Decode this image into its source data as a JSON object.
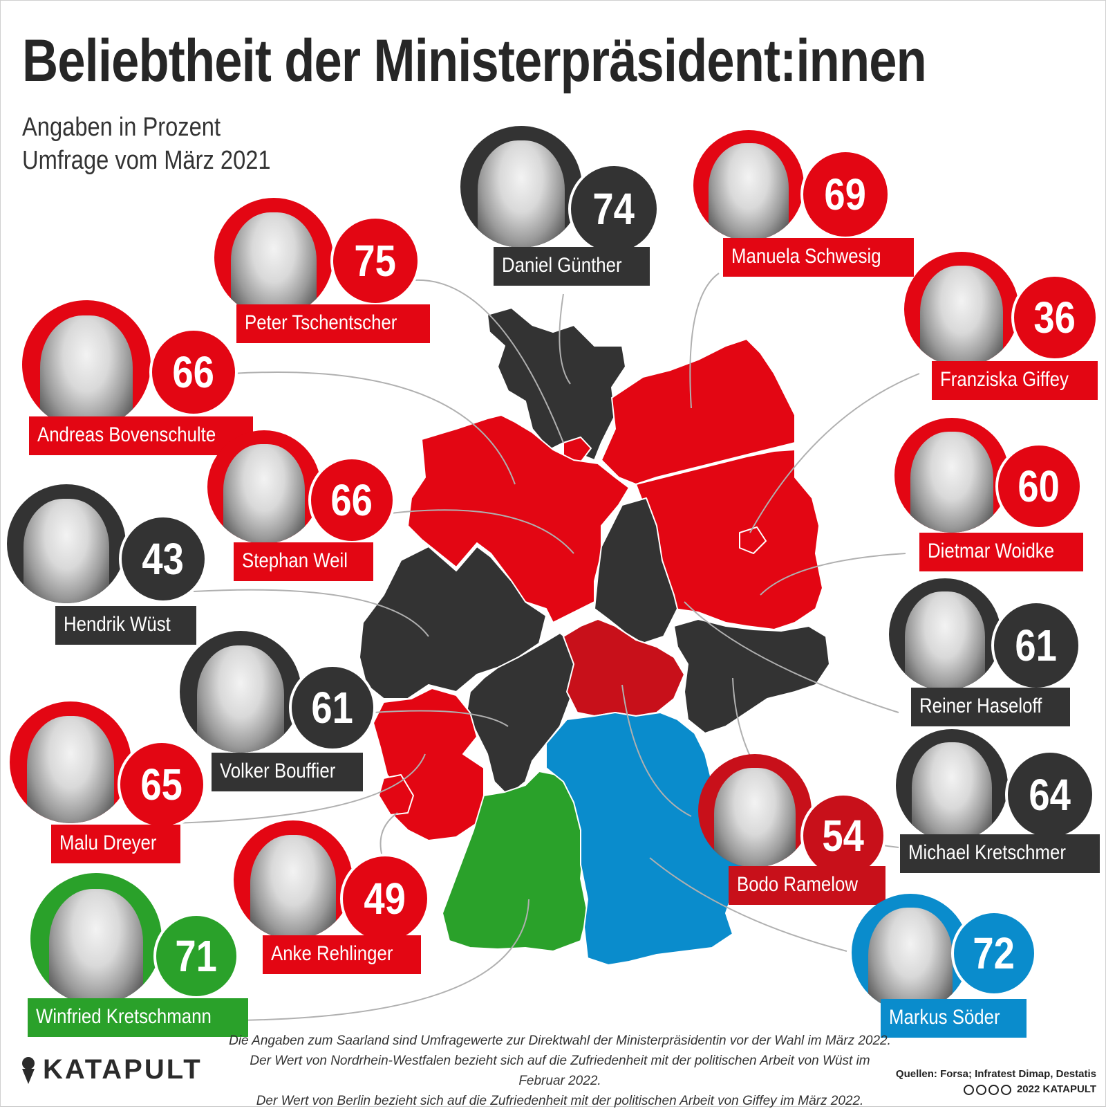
{
  "title": "Beliebtheit der Ministerpräsident:innen",
  "subtitle_line1": "Angaben in Prozent",
  "subtitle_line2": "Umfrage vom März 2021",
  "colors": {
    "spd": "#e30613",
    "cdu": "#333333",
    "linke": "#c8101a",
    "gruene": "#2aa12a",
    "csu": "#0a8ccc"
  },
  "people": [
    {
      "id": "guenther",
      "name": "Daniel Günther",
      "value": "74"
    },
    {
      "id": "schwesig",
      "name": "Manuela Schwesig",
      "value": "69"
    },
    {
      "id": "tschentscher",
      "name": "Peter Tschentscher",
      "value": "75"
    },
    {
      "id": "giffey",
      "name": "Franziska Giffey",
      "value": "36"
    },
    {
      "id": "bovenschulte",
      "name": "Andreas Bovenschulte",
      "value": "66"
    },
    {
      "id": "weil",
      "name": "Stephan Weil",
      "value": "66"
    },
    {
      "id": "woidke",
      "name": "Dietmar Woidke",
      "value": "60"
    },
    {
      "id": "wuest",
      "name": "Hendrik Wüst",
      "value": "43"
    },
    {
      "id": "haseloff",
      "name": "Reiner Haseloff",
      "value": "61"
    },
    {
      "id": "bouffier",
      "name": "Volker Bouffier",
      "value": "61"
    },
    {
      "id": "dreyer",
      "name": "Malu Dreyer",
      "value": "65"
    },
    {
      "id": "kretschmer",
      "name": "Michael Kretschmer",
      "value": "64"
    },
    {
      "id": "ramelow",
      "name": "Bodo Ramelow",
      "value": "54"
    },
    {
      "id": "rehlinger",
      "name": "Anke Rehlinger",
      "value": "49"
    },
    {
      "id": "kretschmann",
      "name": "Winfried Kretschmann",
      "value": "71"
    },
    {
      "id": "soeder",
      "name": "Markus Söder",
      "value": "72"
    }
  ],
  "notes": [
    "Die Angaben zum Saarland sind Umfragewerte zur Direktwahl der Ministerpräsidentin vor der Wahl im März 2022.",
    "Der Wert von Nordrhein-Westfalen bezieht sich auf die Zufriedenheit mit der politischen Arbeit von Wüst im Februar 2022.",
    "Der Wert von Berlin bezieht sich auf die Zufriedenheit mit der politischen Arbeit von Giffey im März 2022."
  ],
  "logo": "KATAPULT",
  "sources": "Quellen: Forsa; Infratest Dimap, Destatis",
  "copyright": "2022 KATAPULT"
}
